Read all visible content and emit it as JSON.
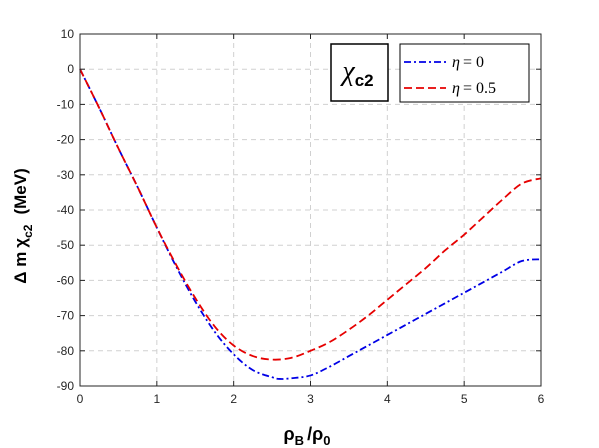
{
  "chart_data": {
    "type": "line",
    "title": "",
    "annotation": {
      "symbol": "χ",
      "subscript": "c2"
    },
    "xlabel": {
      "main": "ρ",
      "sub1": "B",
      "sep": "/",
      "main2": "ρ",
      "sub2": "0"
    },
    "ylabel": {
      "prefix": "Δ m",
      "symbol": "χ",
      "subscript": "c2",
      "unit": "(MeV)"
    },
    "xlim": [
      0,
      6
    ],
    "ylim": [
      -90,
      10
    ],
    "xticks": [
      0,
      1,
      2,
      3,
      4,
      5,
      6
    ],
    "yticks": [
      10,
      0,
      -10,
      -20,
      -30,
      -40,
      -50,
      -60,
      -70,
      -80,
      -90
    ],
    "grid": true,
    "legend_position": "top-right",
    "series": [
      {
        "name": "η = 0",
        "legend_prefix": "η",
        "legend_value": "= 0",
        "color": "#0000e6",
        "style": "dash-dot",
        "x": [
          0,
          0.25,
          0.5,
          0.75,
          1,
          1.25,
          1.5,
          1.75,
          2,
          2.25,
          2.5,
          2.6,
          2.75,
          3,
          3.25,
          3.5,
          3.75,
          4,
          4.25,
          4.5,
          4.75,
          5,
          5.25,
          5.5,
          5.75,
          6
        ],
        "y": [
          0,
          -11,
          -22.5,
          -33.5,
          -45,
          -56,
          -66,
          -74.5,
          -81,
          -85.5,
          -87.5,
          -88,
          -87.8,
          -87,
          -84.5,
          -81.5,
          -78.5,
          -75.5,
          -72.5,
          -69.5,
          -66.5,
          -63.5,
          -60.5,
          -57.5,
          -54.5,
          -54
        ]
      },
      {
        "name": "η = 0.5",
        "legend_prefix": "η",
        "legend_value": "= 0.5",
        "color": "#e60000",
        "style": "dashed",
        "x": [
          0,
          0.25,
          0.5,
          0.75,
          1,
          1.25,
          1.5,
          1.75,
          2,
          2.25,
          2.5,
          2.75,
          3,
          3.25,
          3.5,
          3.75,
          4,
          4.25,
          4.5,
          4.75,
          5,
          5.25,
          5.5,
          5.75,
          6
        ],
        "y": [
          0,
          -11,
          -22.5,
          -33.5,
          -45,
          -55.5,
          -65,
          -73,
          -78.5,
          -81.5,
          -82.5,
          -82,
          -80,
          -77.5,
          -74,
          -70,
          -65.5,
          -61,
          -56.5,
          -51.5,
          -47,
          -42,
          -37,
          -32.5,
          -31
        ]
      }
    ]
  }
}
